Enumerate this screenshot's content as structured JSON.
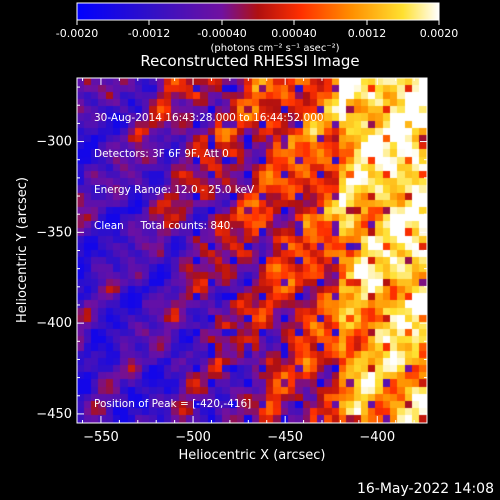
{
  "footer": {
    "timestamp": "16-May-2022 14:08"
  },
  "colorbar": {
    "min": -0.002,
    "max": 0.002,
    "tick_labels": [
      "-0.0020",
      "-0.0012",
      "-0.00040",
      "0.00040",
      "0.0012",
      "0.0020"
    ],
    "unit_label": "(photons cm⁻² s⁻¹ asec⁻²)",
    "colors": [
      "#0000ff",
      "#3010c8",
      "#7010a0",
      "#b01010",
      "#ff3000",
      "#ff9000",
      "#ffe030",
      "#ffffff"
    ]
  },
  "chart_data": {
    "type": "heatmap",
    "title": "Reconstructed RHESSI Image",
    "xlabel": "Heliocentric X (arcsec)",
    "ylabel": "Heliocentric Y (arcsec)",
    "xlim": [
      -563,
      -373
    ],
    "ylim": [
      -455,
      -265
    ],
    "x_ticks": [
      -550,
      -500,
      -450,
      -400
    ],
    "y_ticks": [
      -300,
      -350,
      -400,
      -450
    ],
    "annotations": [
      "30-Aug-2014 16:43:28.000 to 16:44:52.000",
      "Detectors: 3F 6F 9F, Att 0",
      "Energy Range: 12.0 - 25.0 keV",
      "Clean     Total counts: 840."
    ],
    "peak_text": "Position of Peak = [-420,-416]",
    "peak": [
      -420,
      -416
    ],
    "grid_resolution": 48
  }
}
